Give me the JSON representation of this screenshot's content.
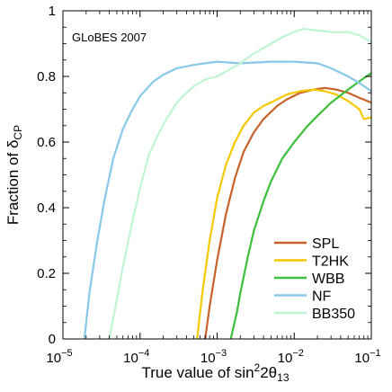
{
  "chart_data": {
    "type": "line",
    "annotation": "GLoBES 2007",
    "xlabel": "True value of sin",
    "xlabel_sup": "2",
    "xlabel_tail": "2θ",
    "xlabel_sub": "13",
    "ylabel": "Fraction of δ",
    "ylabel_sub": "CP",
    "xscale": "log",
    "xlim": [
      1e-05,
      0.1
    ],
    "ylim": [
      0,
      1
    ],
    "x_ticks": [
      {
        "value": 1e-05,
        "base": "10",
        "exp": "−5"
      },
      {
        "value": 0.0001,
        "base": "10",
        "exp": "−4"
      },
      {
        "value": 0.001,
        "base": "10",
        "exp": "−3"
      },
      {
        "value": 0.01,
        "base": "10",
        "exp": "−2"
      },
      {
        "value": 0.1,
        "base": "10",
        "exp": "−1"
      }
    ],
    "y_ticks": [
      {
        "value": 0,
        "label": "0"
      },
      {
        "value": 0.2,
        "label": "0.2"
      },
      {
        "value": 0.4,
        "label": "0.4"
      },
      {
        "value": 0.6,
        "label": "0.6"
      },
      {
        "value": 0.8,
        "label": "0.8"
      },
      {
        "value": 1,
        "label": "1"
      }
    ],
    "grid": false,
    "legend_position": "bottom-right",
    "series": [
      {
        "name": "SPL",
        "color": "#c8622a",
        "x": [
          0.0007,
          0.0008,
          0.001,
          0.0013,
          0.0017,
          0.0022,
          0.003,
          0.004,
          0.006,
          0.008,
          0.012,
          0.018,
          0.025,
          0.035,
          0.05,
          0.07,
          0.1
        ],
        "y": [
          0.0,
          0.1,
          0.24,
          0.38,
          0.49,
          0.57,
          0.63,
          0.67,
          0.71,
          0.73,
          0.75,
          0.76,
          0.765,
          0.76,
          0.75,
          0.735,
          0.72
        ]
      },
      {
        "name": "T2HK",
        "color": "#f5c800",
        "x": [
          0.00055,
          0.00065,
          0.0008,
          0.001,
          0.0013,
          0.0017,
          0.0022,
          0.003,
          0.004,
          0.006,
          0.008,
          0.012,
          0.018,
          0.025,
          0.035,
          0.05,
          0.07,
          0.08,
          0.1
        ],
        "y": [
          0.0,
          0.15,
          0.3,
          0.43,
          0.53,
          0.6,
          0.65,
          0.69,
          0.71,
          0.73,
          0.745,
          0.755,
          0.76,
          0.755,
          0.745,
          0.725,
          0.7,
          0.67,
          0.675
        ]
      },
      {
        "name": "WBB",
        "color": "#3cbf3c",
        "x": [
          0.0015,
          0.0018,
          0.002,
          0.0025,
          0.003,
          0.004,
          0.005,
          0.007,
          0.01,
          0.015,
          0.02,
          0.03,
          0.05,
          0.07,
          0.1
        ],
        "y": [
          0.0,
          0.08,
          0.14,
          0.25,
          0.33,
          0.42,
          0.48,
          0.55,
          0.6,
          0.65,
          0.68,
          0.72,
          0.76,
          0.785,
          0.81
        ]
      },
      {
        "name": "NF",
        "color": "#88c8e8",
        "x": [
          1.9e-05,
          2.2e-05,
          2.8e-05,
          3.5e-05,
          4.5e-05,
          6e-05,
          8e-05,
          0.0001,
          0.00015,
          0.0002,
          0.0003,
          0.0005,
          0.0007,
          0.001,
          0.002,
          0.005,
          0.01,
          0.02,
          0.03,
          0.05,
          0.07,
          0.1
        ],
        "y": [
          0.0,
          0.14,
          0.3,
          0.43,
          0.55,
          0.64,
          0.7,
          0.74,
          0.785,
          0.805,
          0.825,
          0.835,
          0.84,
          0.845,
          0.84,
          0.845,
          0.845,
          0.84,
          0.825,
          0.8,
          0.78,
          0.755
        ]
      },
      {
        "name": "BB350",
        "color": "#bff5d4",
        "x": [
          4e-05,
          5e-05,
          6e-05,
          8e-05,
          0.0001,
          0.00013,
          0.00017,
          0.00022,
          0.0003,
          0.0004,
          0.0005,
          0.0007,
          0.001,
          0.002,
          0.003,
          0.005,
          0.007,
          0.01,
          0.013,
          0.02,
          0.03,
          0.05,
          0.07,
          0.1
        ],
        "y": [
          0.0,
          0.12,
          0.22,
          0.36,
          0.46,
          0.56,
          0.62,
          0.67,
          0.72,
          0.75,
          0.77,
          0.79,
          0.8,
          0.84,
          0.87,
          0.9,
          0.92,
          0.935,
          0.945,
          0.94,
          0.935,
          0.935,
          0.925,
          0.905
        ]
      }
    ]
  }
}
